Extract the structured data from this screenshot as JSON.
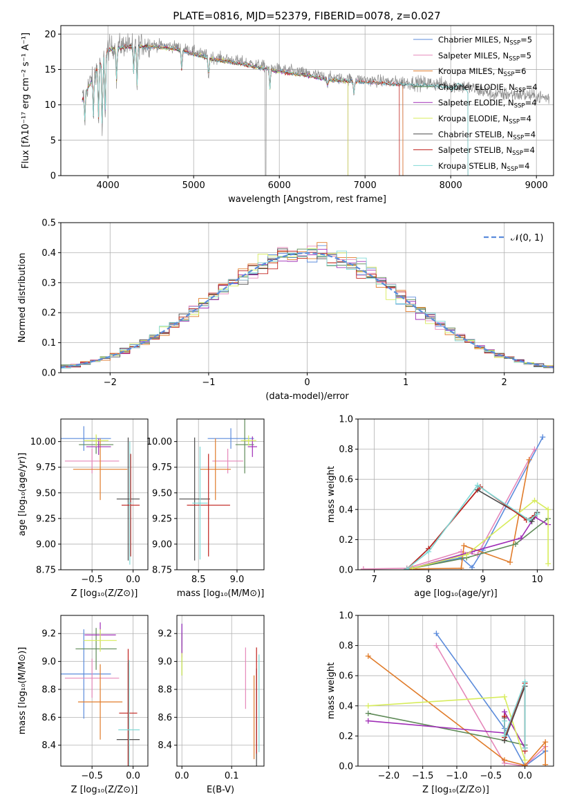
{
  "figure_title": "PLATE=0816, MJD=52379, FIBERID=0078, z=0.027",
  "colors": {
    "Chabrier MILES": "#5b8bdb",
    "Salpeter MILES": "#e587b9",
    "Kroupa MILES": "#e07b29",
    "Chabrier ELODIE": "#5e8a57",
    "Salpeter ELODIE": "#9f2cb6",
    "Kroupa ELODIE": "#d7ec5a",
    "Chabrier STELIB": "#4a4a4a",
    "Salpeter STELIB": "#c0201c",
    "Kroupa STELIB": "#7fd9d6",
    "normal": "#5b8bdb"
  },
  "chart_data": [
    {
      "id": "spectrum",
      "type": "line",
      "xlabel": "wavelength [Angstrom, rest frame]",
      "ylabel": "Flux [fλ10⁻¹⁷ erg cm⁻² s⁻¹ A⁻¹]",
      "xlim": [
        3450,
        9200
      ],
      "ylim": [
        0,
        21.2
      ],
      "xticks": [
        "4000",
        "5000",
        "6000",
        "7000",
        "8000",
        "9000"
      ],
      "yticks": [
        "0",
        "5",
        "10",
        "15",
        "20"
      ],
      "legend_position": "top-right",
      "legend": [
        {
          "name": "Chabrier MILES",
          "nssp": "5"
        },
        {
          "name": "Salpeter MILES",
          "nssp": "5"
        },
        {
          "name": "Kroupa MILES",
          "nssp": "6"
        },
        {
          "name": "Chabrier ELODIE",
          "nssp": "4"
        },
        {
          "name": "Salpeter ELODIE",
          "nssp": "4"
        },
        {
          "name": "Kroupa ELODIE",
          "nssp": "4"
        },
        {
          "name": "Chabrier STELIB",
          "nssp": "4"
        },
        {
          "name": "Salpeter STELIB",
          "nssp": "4"
        },
        {
          "name": "Kroupa STELIB",
          "nssp": "4"
        }
      ],
      "data_envelope": [
        [
          3700,
          11
        ],
        [
          3800,
          13.5
        ],
        [
          3900,
          16
        ],
        [
          4000,
          18
        ],
        [
          4200,
          18.5
        ],
        [
          4500,
          18.5
        ],
        [
          4800,
          18.2
        ],
        [
          5000,
          17.5
        ],
        [
          5200,
          16.8
        ],
        [
          5500,
          16.2
        ],
        [
          5800,
          15.5
        ],
        [
          6000,
          15.0
        ],
        [
          6300,
          14.5
        ],
        [
          6600,
          13.8
        ],
        [
          7000,
          13.5
        ],
        [
          7400,
          13.2
        ],
        [
          7800,
          13.0
        ],
        [
          8200,
          12.5
        ],
        [
          8500,
          11.5
        ],
        [
          8800,
          11.5
        ],
        [
          9100,
          11
        ]
      ]
    },
    {
      "id": "residuals",
      "type": "histogram",
      "xlabel": "(data-model)/error",
      "ylabel": "Normed distribution",
      "xlim": [
        -2.5,
        2.5
      ],
      "ylim": [
        0,
        0.5
      ],
      "xticks": [
        "−2",
        "−1",
        "0",
        "1",
        "2"
      ],
      "yticks": [
        "0.0",
        "0.1",
        "0.2",
        "0.3",
        "0.4",
        "0.5"
      ],
      "bin_width": 0.1,
      "legend_position": "top-right",
      "legend_label": "𝒩(0, 1)",
      "reference_curve": "normal(0,1)"
    },
    {
      "id": "age-vs-z",
      "type": "scatter",
      "xlabel": "Z [log₁₀(Z/Z⊙)]",
      "ylabel": "age  [log₁₀(age/yr)]",
      "xlim": [
        -0.88,
        0.18
      ],
      "ylim": [
        8.75,
        10.22
      ],
      "xticks": [
        "−0.5",
        "0.0"
      ],
      "yticks": [
        "8.75",
        "9.00",
        "9.25",
        "9.50",
        "9.75",
        "10.00"
      ],
      "points": [
        {
          "series": "Chabrier MILES",
          "x": -0.6,
          "y": 10.03,
          "xerr": 0.33,
          "yerr": 0.12
        },
        {
          "series": "Salpeter MILES",
          "x": -0.5,
          "y": 9.81,
          "xerr": 0.33,
          "yerr": 0.12
        },
        {
          "series": "Kroupa MILES",
          "x": -0.4,
          "y": 9.73,
          "xerr": 0.33,
          "yerr": 0.3
        },
        {
          "series": "Chabrier ELODIE",
          "x": -0.45,
          "y": 9.97,
          "xerr": 0.21,
          "yerr": 0.09
        },
        {
          "series": "Salpeter ELODIE",
          "x": -0.42,
          "y": 9.95,
          "xerr": 0.15,
          "yerr": 0.08
        },
        {
          "series": "Kroupa ELODIE",
          "x": -0.45,
          "y": 10.01,
          "xerr": 0.15,
          "yerr": 0.06
        },
        {
          "series": "Chabrier STELIB",
          "x": -0.06,
          "y": 9.44,
          "xerr": 0.14,
          "yerr": 0.6
        },
        {
          "series": "Salpeter STELIB",
          "x": -0.03,
          "y": 9.38,
          "xerr": 0.11,
          "yerr": 0.5
        },
        {
          "series": "Kroupa STELIB",
          "x": -0.04,
          "y": 9.4,
          "xerr": 0.02,
          "yerr": 0.6
        }
      ]
    },
    {
      "id": "age-vs-mass",
      "type": "scatter",
      "xlabel": "mass [log₁₀(M/M⊙)]",
      "ylabel": "",
      "xlim": [
        8.22,
        9.35
      ],
      "ylim": [
        8.75,
        10.22
      ],
      "xticks": [
        "8.5",
        "9.0"
      ],
      "yticks": [
        "8.75",
        "9.00",
        "9.25",
        "9.50",
        "9.75",
        "10.00"
      ],
      "points": [
        {
          "series": "Chabrier MILES",
          "x": 8.92,
          "y": 10.03,
          "xerr": 0.3,
          "yerr": 0.1
        },
        {
          "series": "Salpeter MILES",
          "x": 8.88,
          "y": 9.81,
          "xerr": 0.2,
          "yerr": 0.12
        },
        {
          "series": "Kroupa MILES",
          "x": 8.72,
          "y": 9.73,
          "xerr": 0.2,
          "yerr": 0.3
        },
        {
          "series": "Chabrier ELODIE",
          "x": 9.1,
          "y": 9.97,
          "xerr": 0.12,
          "yerr": 0.28
        },
        {
          "series": "Salpeter ELODIE",
          "x": 9.2,
          "y": 9.95,
          "xerr": 0.06,
          "yerr": 0.1
        },
        {
          "series": "Kroupa ELODIE",
          "x": 9.15,
          "y": 10.01,
          "xerr": 0.1,
          "yerr": 0.05
        },
        {
          "series": "Chabrier STELIB",
          "x": 8.45,
          "y": 9.44,
          "xerr": 0.2,
          "yerr": 0.6
        },
        {
          "series": "Salpeter STELIB",
          "x": 8.63,
          "y": 9.38,
          "xerr": 0.28,
          "yerr": 0.5
        },
        {
          "series": "Kroupa STELIB",
          "x": 8.52,
          "y": 9.4,
          "xerr": 0.1,
          "yerr": 0.55
        }
      ]
    },
    {
      "id": "weight-vs-age",
      "type": "line",
      "xlabel": "age  [log₁₀(age/yr)]",
      "ylabel": "mass weight",
      "xlim": [
        6.7,
        10.3
      ],
      "ylim": [
        0,
        1
      ],
      "xticks": [
        "7",
        "8",
        "9",
        "10"
      ],
      "yticks": [
        "0.0",
        "0.2",
        "0.4",
        "0.6",
        "0.8",
        "1.0"
      ],
      "series": [
        {
          "name": "Chabrier MILES",
          "x": [
            7.6,
            8.6,
            8.8,
            9.0,
            10.1
          ],
          "y": [
            0.005,
            0.08,
            0.015,
            0.13,
            0.88
          ]
        },
        {
          "name": "Salpeter MILES",
          "x": [
            6.8,
            7.6,
            8.6,
            8.9,
            9.95
          ],
          "y": [
            0.005,
            0.01,
            0.12,
            0.1,
            0.8
          ]
        },
        {
          "name": "Kroupa MILES",
          "x": [
            7.6,
            8.6,
            8.65,
            9.5,
            9.85
          ],
          "y": [
            0.005,
            0.01,
            0.16,
            0.05,
            0.73
          ]
        },
        {
          "name": "Chabrier ELODIE",
          "x": [
            7.7,
            8.7,
            9.6,
            10.2
          ],
          "y": [
            0.01,
            0.08,
            0.17,
            0.34
          ]
        },
        {
          "name": "Salpeter ELODIE",
          "x": [
            7.7,
            8.8,
            9.7,
            9.95,
            10.2
          ],
          "y": [
            0.01,
            0.12,
            0.21,
            0.35,
            0.3
          ]
        },
        {
          "name": "Kroupa ELODIE",
          "x": [
            7.7,
            8.7,
            9.95,
            10.2,
            10.2
          ],
          "y": [
            0.01,
            0.1,
            0.46,
            0.4,
            0.04
          ]
        },
        {
          "name": "Chabrier STELIB",
          "x": [
            7.6,
            8.0,
            8.9,
            9.9,
            10.0
          ],
          "y": [
            0.005,
            0.14,
            0.53,
            0.32,
            0.38
          ]
        },
        {
          "name": "Salpeter STELIB",
          "x": [
            7.6,
            8.0,
            8.95,
            9.8,
            9.95
          ],
          "y": [
            0.005,
            0.14,
            0.55,
            0.33,
            0.36
          ]
        },
        {
          "name": "Kroupa STELIB",
          "x": [
            7.6,
            8.0,
            8.9,
            9.85,
            10.0
          ],
          "y": [
            0.005,
            0.12,
            0.56,
            0.33,
            0.37
          ]
        }
      ]
    },
    {
      "id": "mass-vs-z",
      "type": "scatter",
      "xlabel": "Z [log₁₀(Z/Z⊙)]",
      "ylabel": "mass [log₁₀(M/M⊙)]",
      "xlim": [
        -0.88,
        0.18
      ],
      "ylim": [
        8.25,
        9.33
      ],
      "xticks": [
        "−0.5",
        "0.0"
      ],
      "yticks": [
        "8.4",
        "8.6",
        "8.8",
        "9.0",
        "9.2"
      ],
      "points": [
        {
          "series": "Chabrier MILES",
          "x": -0.6,
          "y": 8.91,
          "xerr": 0.33,
          "yerr": 0.32
        },
        {
          "series": "Salpeter MILES",
          "x": -0.5,
          "y": 8.88,
          "xerr": 0.33,
          "yerr": 0.14
        },
        {
          "series": "Kroupa MILES",
          "x": -0.4,
          "y": 8.71,
          "xerr": 0.27,
          "yerr": 0.27
        },
        {
          "series": "Chabrier ELODIE",
          "x": -0.45,
          "y": 9.09,
          "xerr": 0.25,
          "yerr": 0.15
        },
        {
          "series": "Salpeter ELODIE",
          "x": -0.4,
          "y": 9.19,
          "xerr": 0.19,
          "yerr": 0.09
        },
        {
          "series": "Kroupa ELODIE",
          "x": -0.4,
          "y": 9.15,
          "xerr": 0.2,
          "yerr": 0.08
        },
        {
          "series": "Chabrier STELIB",
          "x": -0.06,
          "y": 8.44,
          "xerr": 0.14,
          "yerr": 0.55
        },
        {
          "series": "Salpeter STELIB",
          "x": -0.06,
          "y": 8.63,
          "xerr": 0.11,
          "yerr": 0.46
        },
        {
          "series": "Kroupa STELIB",
          "x": -0.05,
          "y": 8.51,
          "xerr": 0.13,
          "yerr": 0.5
        }
      ]
    },
    {
      "id": "mass-vs-ebv",
      "type": "scatter",
      "xlabel": "E(B-V)",
      "ylabel": "",
      "xlim": [
        -0.01,
        0.165
      ],
      "ylim": [
        8.25,
        9.33
      ],
      "xticks": [
        "0.0",
        "0.1"
      ],
      "yticks": [
        "8.4",
        "8.6",
        "8.8",
        "9.0",
        "9.2"
      ],
      "points": [
        {
          "series": "Chabrier MILES",
          "x": 0.0,
          "y": 9.19,
          "xerr": 0,
          "yerr": 0.08
        },
        {
          "series": "Salpeter MILES",
          "x": 0.128,
          "y": 8.88,
          "xerr": 0,
          "yerr": 0.22
        },
        {
          "series": "Kroupa MILES",
          "x": 0.145,
          "y": 8.6,
          "xerr": 0,
          "yerr": 0.3
        },
        {
          "series": "Chabrier ELODIE",
          "x": 0.0,
          "y": 9.05,
          "xerr": 0,
          "yerr": 0.15
        },
        {
          "series": "Salpeter ELODIE",
          "x": 0.0,
          "y": 9.15,
          "xerr": 0,
          "yerr": 0.12
        },
        {
          "series": "Kroupa ELODIE",
          "x": 0.0,
          "y": 8.98,
          "xerr": 0,
          "yerr": 0.08
        },
        {
          "series": "Chabrier STELIB",
          "x": 0.15,
          "y": 8.5,
          "xerr": 0,
          "yerr": 0.45
        },
        {
          "series": "Salpeter STELIB",
          "x": 0.15,
          "y": 8.72,
          "xerr": 0,
          "yerr": 0.38
        },
        {
          "series": "Kroupa STELIB",
          "x": 0.155,
          "y": 8.7,
          "xerr": 0,
          "yerr": 0.35
        }
      ]
    },
    {
      "id": "weight-vs-z",
      "type": "line",
      "xlabel": "Z [log₁₀(Z/Z⊙)]",
      "ylabel": "mass weight",
      "xlim": [
        -2.45,
        0.42
      ],
      "ylim": [
        0,
        1
      ],
      "xticks": [
        "−2.0",
        "−1.5",
        "−1.0",
        "−0.5",
        "0.0"
      ],
      "yticks": [
        "0.0",
        "0.2",
        "0.4",
        "0.6",
        "0.8",
        "1.0"
      ],
      "series": [
        {
          "name": "Chabrier MILES",
          "x": [
            -1.3,
            -0.3,
            0.0,
            0.3
          ],
          "y": [
            0.88,
            0.25,
            0.0,
            0.1
          ]
        },
        {
          "name": "Salpeter MILES",
          "x": [
            -1.3,
            -0.3,
            0.0,
            0.3
          ],
          "y": [
            0.8,
            0.02,
            0.0,
            0.13
          ]
        },
        {
          "name": "Kroupa MILES",
          "x": [
            -2.3,
            -0.3,
            0.0,
            0.3,
            0.3
          ],
          "y": [
            0.73,
            0.04,
            0.005,
            0.16,
            0.01
          ]
        },
        {
          "name": "Chabrier ELODIE",
          "x": [
            -2.3,
            -0.3,
            0.0
          ],
          "y": [
            0.35,
            0.17,
            0.14
          ]
        },
        {
          "name": "Salpeter ELODIE",
          "x": [
            -2.3,
            -0.3,
            -0.3,
            0.0
          ],
          "y": [
            0.3,
            0.22,
            0.36,
            0.12
          ]
        },
        {
          "name": "Kroupa ELODIE",
          "x": [
            -2.3,
            -0.3,
            0.0
          ],
          "y": [
            0.4,
            0.46,
            0.04
          ]
        },
        {
          "name": "Chabrier STELIB",
          "x": [
            -0.3,
            -0.3,
            0.0,
            0.0
          ],
          "y": [
            0.32,
            0.17,
            0.53,
            0.12
          ]
        },
        {
          "name": "Salpeter STELIB",
          "x": [
            -0.3,
            -0.3,
            0.0,
            0.0
          ],
          "y": [
            0.33,
            0.19,
            0.55,
            0.1
          ]
        },
        {
          "name": "Kroupa STELIB",
          "x": [
            -0.3,
            -0.3,
            0.0,
            0.0
          ],
          "y": [
            0.3,
            0.2,
            0.56,
            0.12
          ]
        }
      ]
    }
  ]
}
